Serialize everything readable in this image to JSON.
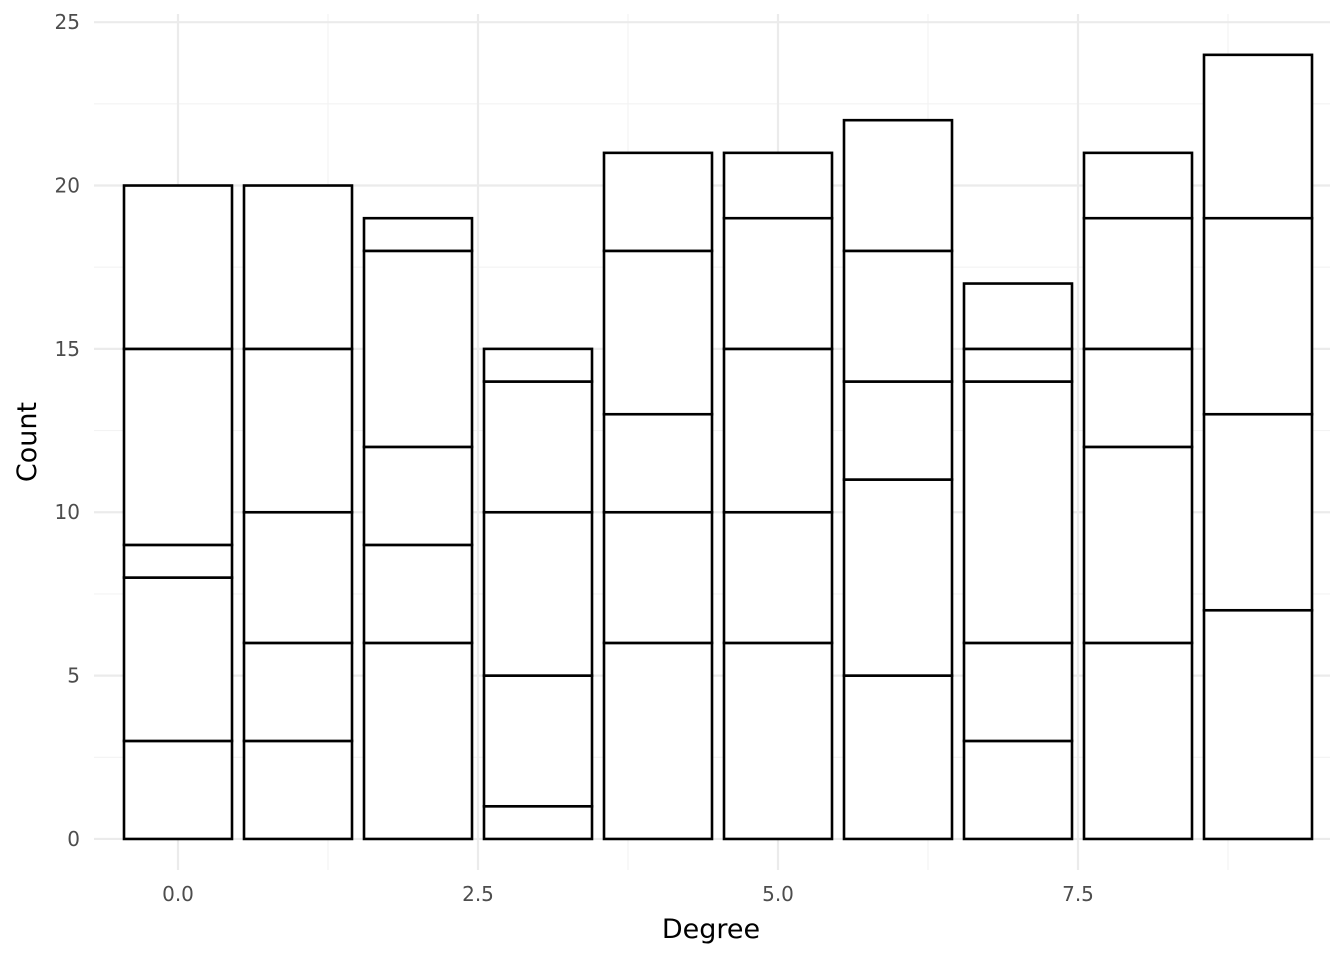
{
  "chart_data": {
    "type": "bar",
    "stacked": true,
    "xlabel": "Degree",
    "ylabel": "Count",
    "x": [
      0,
      1,
      2,
      3,
      4,
      5,
      6,
      7,
      8,
      9
    ],
    "stacks": [
      [
        3,
        5,
        1,
        6,
        5
      ],
      [
        3,
        3,
        4,
        5,
        5
      ],
      [
        6,
        3,
        3,
        6,
        1
      ],
      [
        1,
        4,
        5,
        4,
        1
      ],
      [
        6,
        4,
        3,
        5,
        3
      ],
      [
        6,
        4,
        5,
        4,
        2
      ],
      [
        5,
        6,
        3,
        4,
        4
      ],
      [
        3,
        3,
        8,
        1,
        2
      ],
      [
        6,
        6,
        3,
        4,
        2
      ],
      [
        7,
        6,
        6,
        5
      ]
    ],
    "totals": [
      20,
      20,
      19,
      15,
      21,
      21,
      22,
      17,
      21,
      24
    ],
    "xlim": [
      -0.7,
      9.6
    ],
    "ylim": [
      -0.95,
      25.25
    ],
    "x_ticks": [
      0,
      2.5,
      5,
      7.5
    ],
    "x_tick_labels": [
      "0.0",
      "2.5",
      "5.0",
      "7.5"
    ],
    "y_ticks": [
      0,
      5,
      10,
      15,
      20,
      25
    ],
    "y_tick_labels": [
      "0",
      "5",
      "10",
      "15",
      "20",
      "25"
    ],
    "bar_fill": "#ffffff",
    "bar_outline": "#000000",
    "grid": true,
    "legend": "none"
  }
}
